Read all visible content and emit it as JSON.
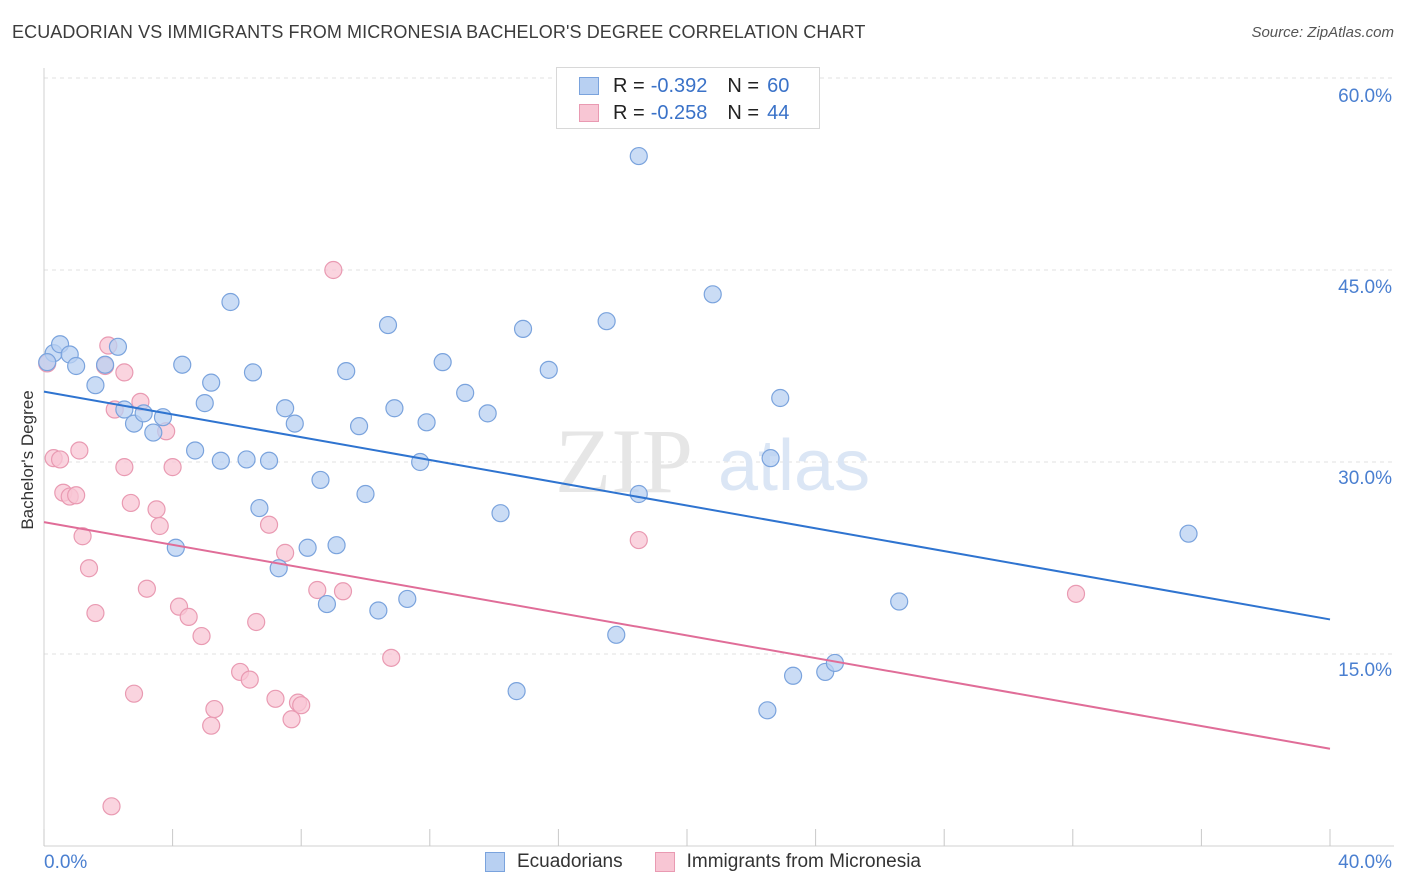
{
  "header": {
    "title": "ECUADORIAN VS IMMIGRANTS FROM MICRONESIA BACHELOR'S DEGREE CORRELATION CHART",
    "source": "Source: ZipAtlas.com"
  },
  "legend": {
    "series": [
      {
        "r_label": "R =",
        "r_value": "-0.392",
        "n_label": "N =",
        "n_value": "60"
      },
      {
        "r_label": "R =",
        "r_value": "-0.258",
        "n_label": "N =",
        "n_value": "44"
      }
    ]
  },
  "watermark": {
    "zip": "ZIP",
    "atlas": "atlas"
  },
  "colors": {
    "blue_fill": "#b8d0f2",
    "blue_stroke": "#7aa3dd",
    "blue_line": "#2f74d0",
    "pink_fill": "#f8c6d4",
    "pink_stroke": "#e99ab2",
    "pink_line": "#e06d98",
    "axis_text": "#4a7fd0",
    "grid": "#e2e2e2"
  },
  "chart_data": {
    "type": "scatter",
    "title": "ECUADORIAN VS IMMIGRANTS FROM MICRONESIA BACHELOR'S DEGREE CORRELATION CHART",
    "xlabel": "",
    "ylabel": "Bachelor's Degree",
    "xlim": [
      0,
      40
    ],
    "ylim": [
      0,
      60
    ],
    "x_tick_labels": [
      "0.0%",
      "40.0%"
    ],
    "y_ticks": [
      15,
      30,
      45,
      60
    ],
    "y_tick_labels": [
      "15.0%",
      "30.0%",
      "45.0%",
      "60.0%"
    ],
    "series": [
      {
        "name": "Ecuadorians",
        "trend": {
          "x": [
            0,
            40
          ],
          "y": [
            35.5,
            17.7
          ]
        },
        "points": [
          [
            0.3,
            38.5
          ],
          [
            0.5,
            39.2
          ],
          [
            0.8,
            38.4
          ],
          [
            1.0,
            37.5
          ],
          [
            1.6,
            36.0
          ],
          [
            1.9,
            37.6
          ],
          [
            2.3,
            39.0
          ],
          [
            2.5,
            34.1
          ],
          [
            2.8,
            33.0
          ],
          [
            3.1,
            33.8
          ],
          [
            3.4,
            32.3
          ],
          [
            3.7,
            33.5
          ],
          [
            4.1,
            23.3
          ],
          [
            4.3,
            37.6
          ],
          [
            4.7,
            30.9
          ],
          [
            5.0,
            34.6
          ],
          [
            5.2,
            36.2
          ],
          [
            5.5,
            30.1
          ],
          [
            5.8,
            42.5
          ],
          [
            6.3,
            30.2
          ],
          [
            6.5,
            37.0
          ],
          [
            6.7,
            26.4
          ],
          [
            7.0,
            30.1
          ],
          [
            7.3,
            21.7
          ],
          [
            7.5,
            34.2
          ],
          [
            7.8,
            33.0
          ],
          [
            8.2,
            23.3
          ],
          [
            8.6,
            28.6
          ],
          [
            8.8,
            18.9
          ],
          [
            9.1,
            23.5
          ],
          [
            9.4,
            37.1
          ],
          [
            9.8,
            32.8
          ],
          [
            10.0,
            27.5
          ],
          [
            10.4,
            18.4
          ],
          [
            10.7,
            40.7
          ],
          [
            10.9,
            34.2
          ],
          [
            11.3,
            19.3
          ],
          [
            11.7,
            30.0
          ],
          [
            11.9,
            33.1
          ],
          [
            12.4,
            37.8
          ],
          [
            13.1,
            35.4
          ],
          [
            13.8,
            33.8
          ],
          [
            14.2,
            26.0
          ],
          [
            14.7,
            12.1
          ],
          [
            14.9,
            40.4
          ],
          [
            15.7,
            37.2
          ],
          [
            17.5,
            41.0
          ],
          [
            17.8,
            16.5
          ],
          [
            18.5,
            53.9
          ],
          [
            18.5,
            27.5
          ],
          [
            20.8,
            43.1
          ],
          [
            22.5,
            10.6
          ],
          [
            22.6,
            30.3
          ],
          [
            22.9,
            35.0
          ],
          [
            23.3,
            13.3
          ],
          [
            24.3,
            13.6
          ],
          [
            24.6,
            14.3
          ],
          [
            26.6,
            19.1
          ],
          [
            35.6,
            24.4
          ],
          [
            0.1,
            37.8
          ]
        ]
      },
      {
        "name": "Immigrants from Micronesia",
        "trend": {
          "x": [
            0,
            40
          ],
          "y": [
            25.3,
            7.6
          ]
        },
        "points": [
          [
            0.1,
            37.7
          ],
          [
            0.3,
            30.3
          ],
          [
            0.5,
            30.2
          ],
          [
            0.6,
            27.6
          ],
          [
            0.8,
            27.3
          ],
          [
            1.0,
            27.4
          ],
          [
            1.1,
            30.9
          ],
          [
            1.2,
            24.2
          ],
          [
            1.4,
            21.7
          ],
          [
            1.6,
            18.2
          ],
          [
            1.9,
            37.5
          ],
          [
            2.0,
            39.1
          ],
          [
            2.1,
            3.1
          ],
          [
            2.2,
            34.1
          ],
          [
            2.5,
            29.6
          ],
          [
            2.5,
            37.0
          ],
          [
            2.7,
            26.8
          ],
          [
            2.8,
            11.9
          ],
          [
            3.0,
            34.7
          ],
          [
            3.2,
            20.1
          ],
          [
            3.5,
            26.3
          ],
          [
            3.6,
            25.0
          ],
          [
            3.8,
            32.4
          ],
          [
            4.0,
            29.6
          ],
          [
            4.2,
            18.7
          ],
          [
            4.5,
            17.9
          ],
          [
            4.9,
            16.4
          ],
          [
            5.2,
            9.4
          ],
          [
            5.3,
            10.7
          ],
          [
            6.1,
            13.6
          ],
          [
            6.4,
            13.0
          ],
          [
            6.6,
            17.5
          ],
          [
            7.0,
            25.1
          ],
          [
            7.2,
            11.5
          ],
          [
            7.5,
            22.9
          ],
          [
            7.7,
            9.9
          ],
          [
            7.9,
            11.2
          ],
          [
            8.0,
            11.0
          ],
          [
            8.5,
            20.0
          ],
          [
            9.0,
            45.0
          ],
          [
            9.3,
            19.9
          ],
          [
            10.8,
            14.7
          ],
          [
            18.5,
            23.9
          ],
          [
            32.1,
            19.7
          ]
        ]
      }
    ]
  }
}
